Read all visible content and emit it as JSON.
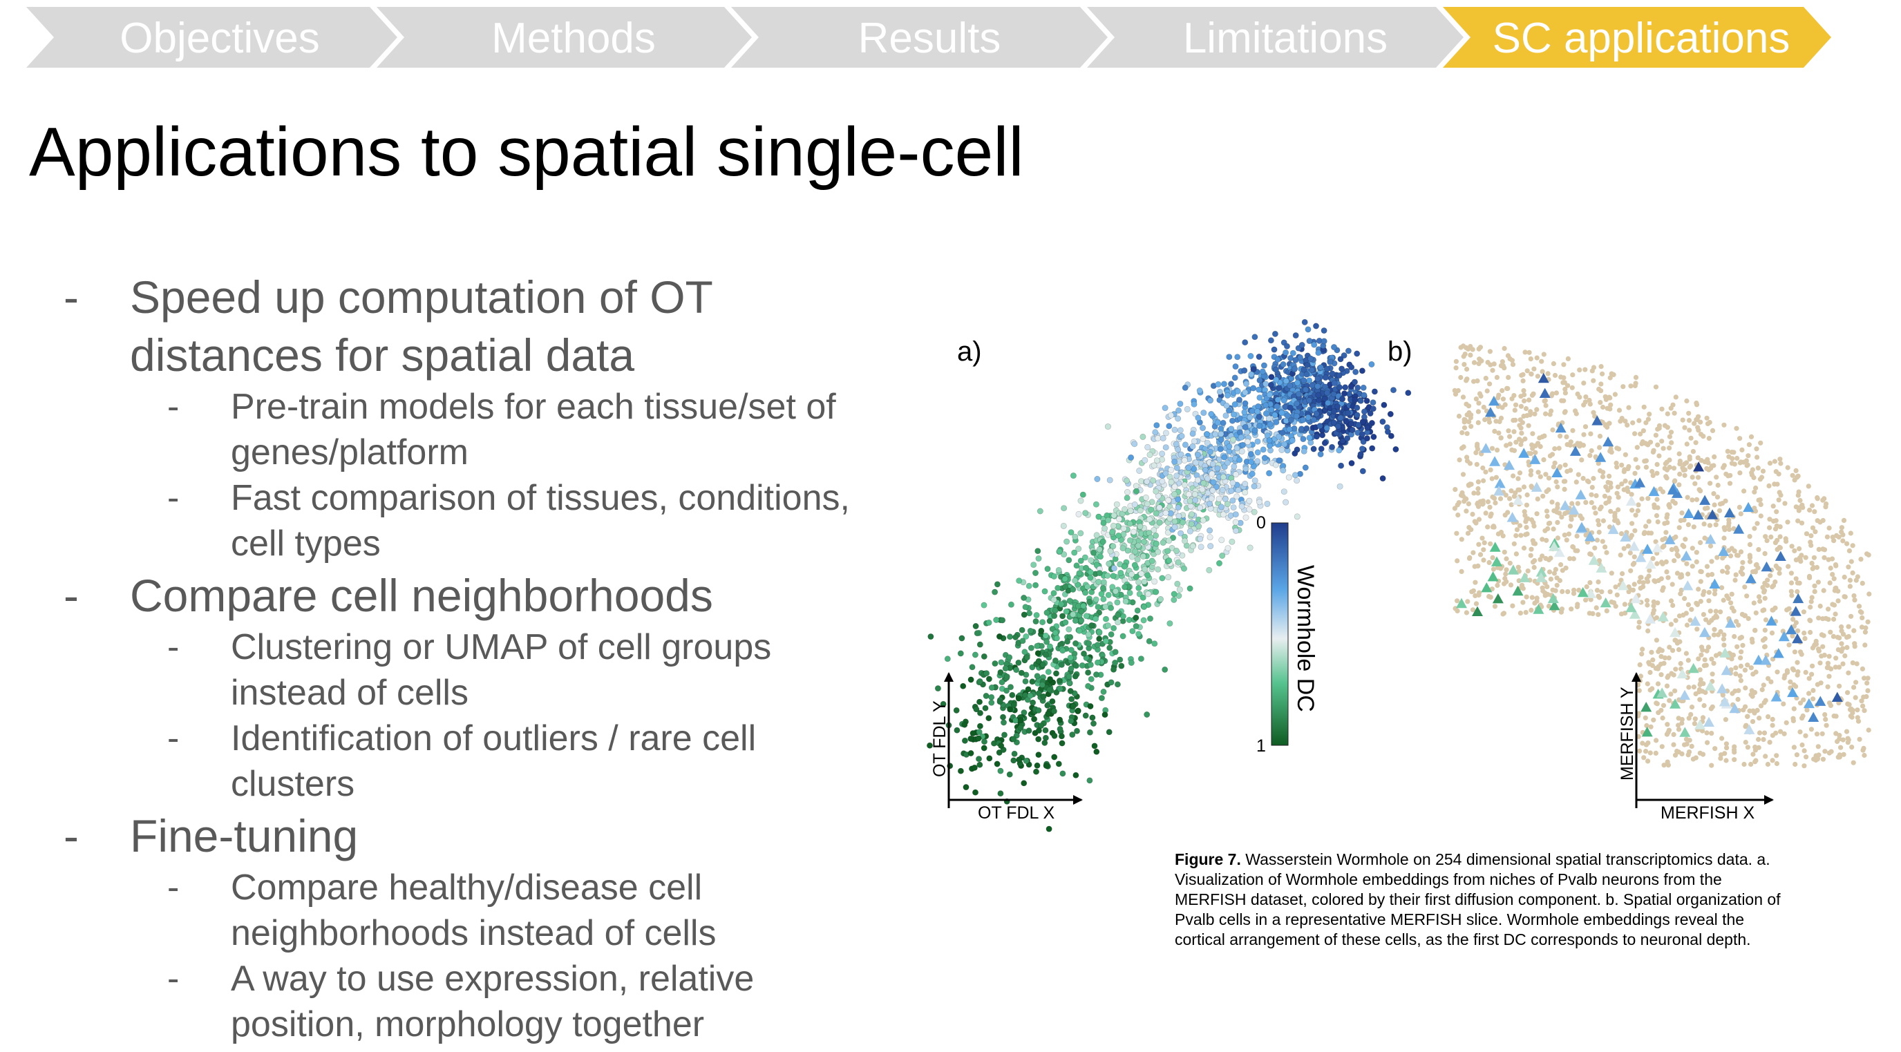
{
  "chevron_bar": {
    "steps": [
      {
        "label": "Objectives",
        "active": false
      },
      {
        "label": "Methods",
        "active": false
      },
      {
        "label": "Results",
        "active": false
      },
      {
        "label": "Limitations",
        "active": false
      },
      {
        "label": "SC applications",
        "active": true
      }
    ],
    "colors": {
      "inactive": "#d9d9d9",
      "active": "#f1c232"
    }
  },
  "title": "Applications to spatial single-cell",
  "bullets": [
    {
      "text": "Speed up computation of OT distances for spatial data",
      "sub": [
        "Pre-train models for each tissue/set of genes/platform",
        "Fast comparison of tissues, conditions, cell types"
      ]
    },
    {
      "text": "Compare cell neighborhoods",
      "sub": [
        "Clustering or UMAP of cell groups instead of cells",
        "Identification of outliers / rare cell clusters"
      ]
    },
    {
      "text": "Fine-tuning",
      "sub": [
        "Compare healthy/disease cell neighborhoods instead of cells",
        "A way to use expression, relative position, morphology together"
      ]
    }
  ],
  "figure": {
    "panel_a": {
      "letter": "a)",
      "xlabel": "OT FDL X",
      "ylabel": "OT FDL Y"
    },
    "panel_b": {
      "letter": "b)",
      "xlabel": "MERFISH X",
      "ylabel": "MERFISH Y"
    },
    "colorbar": {
      "label": "Wormhole DC",
      "tick_min": "0",
      "tick_max": "1"
    },
    "colors": {
      "dark_blue": "#1f3d8c",
      "light_blue": "#5aa6e6",
      "pale": "#e8eef0",
      "light_green": "#56c38f",
      "dark_green": "#0f5c22",
      "tan": "#d8c7a8"
    }
  },
  "caption": {
    "bold": "Figure 7.",
    "text": " Wasserstein Wormhole on 254 dimensional spatial transcriptomics data. a. Visualization of Wormhole embeddings from niches of Pvalb neurons from the MERFISH dataset, colored by their first diffusion component. b. Spatial organization of Pvalb cells in a representative MERFISH slice. Wormhole embeddings reveal the cortical arrangement of these cells, as the first DC corresponds to neuronal depth."
  }
}
